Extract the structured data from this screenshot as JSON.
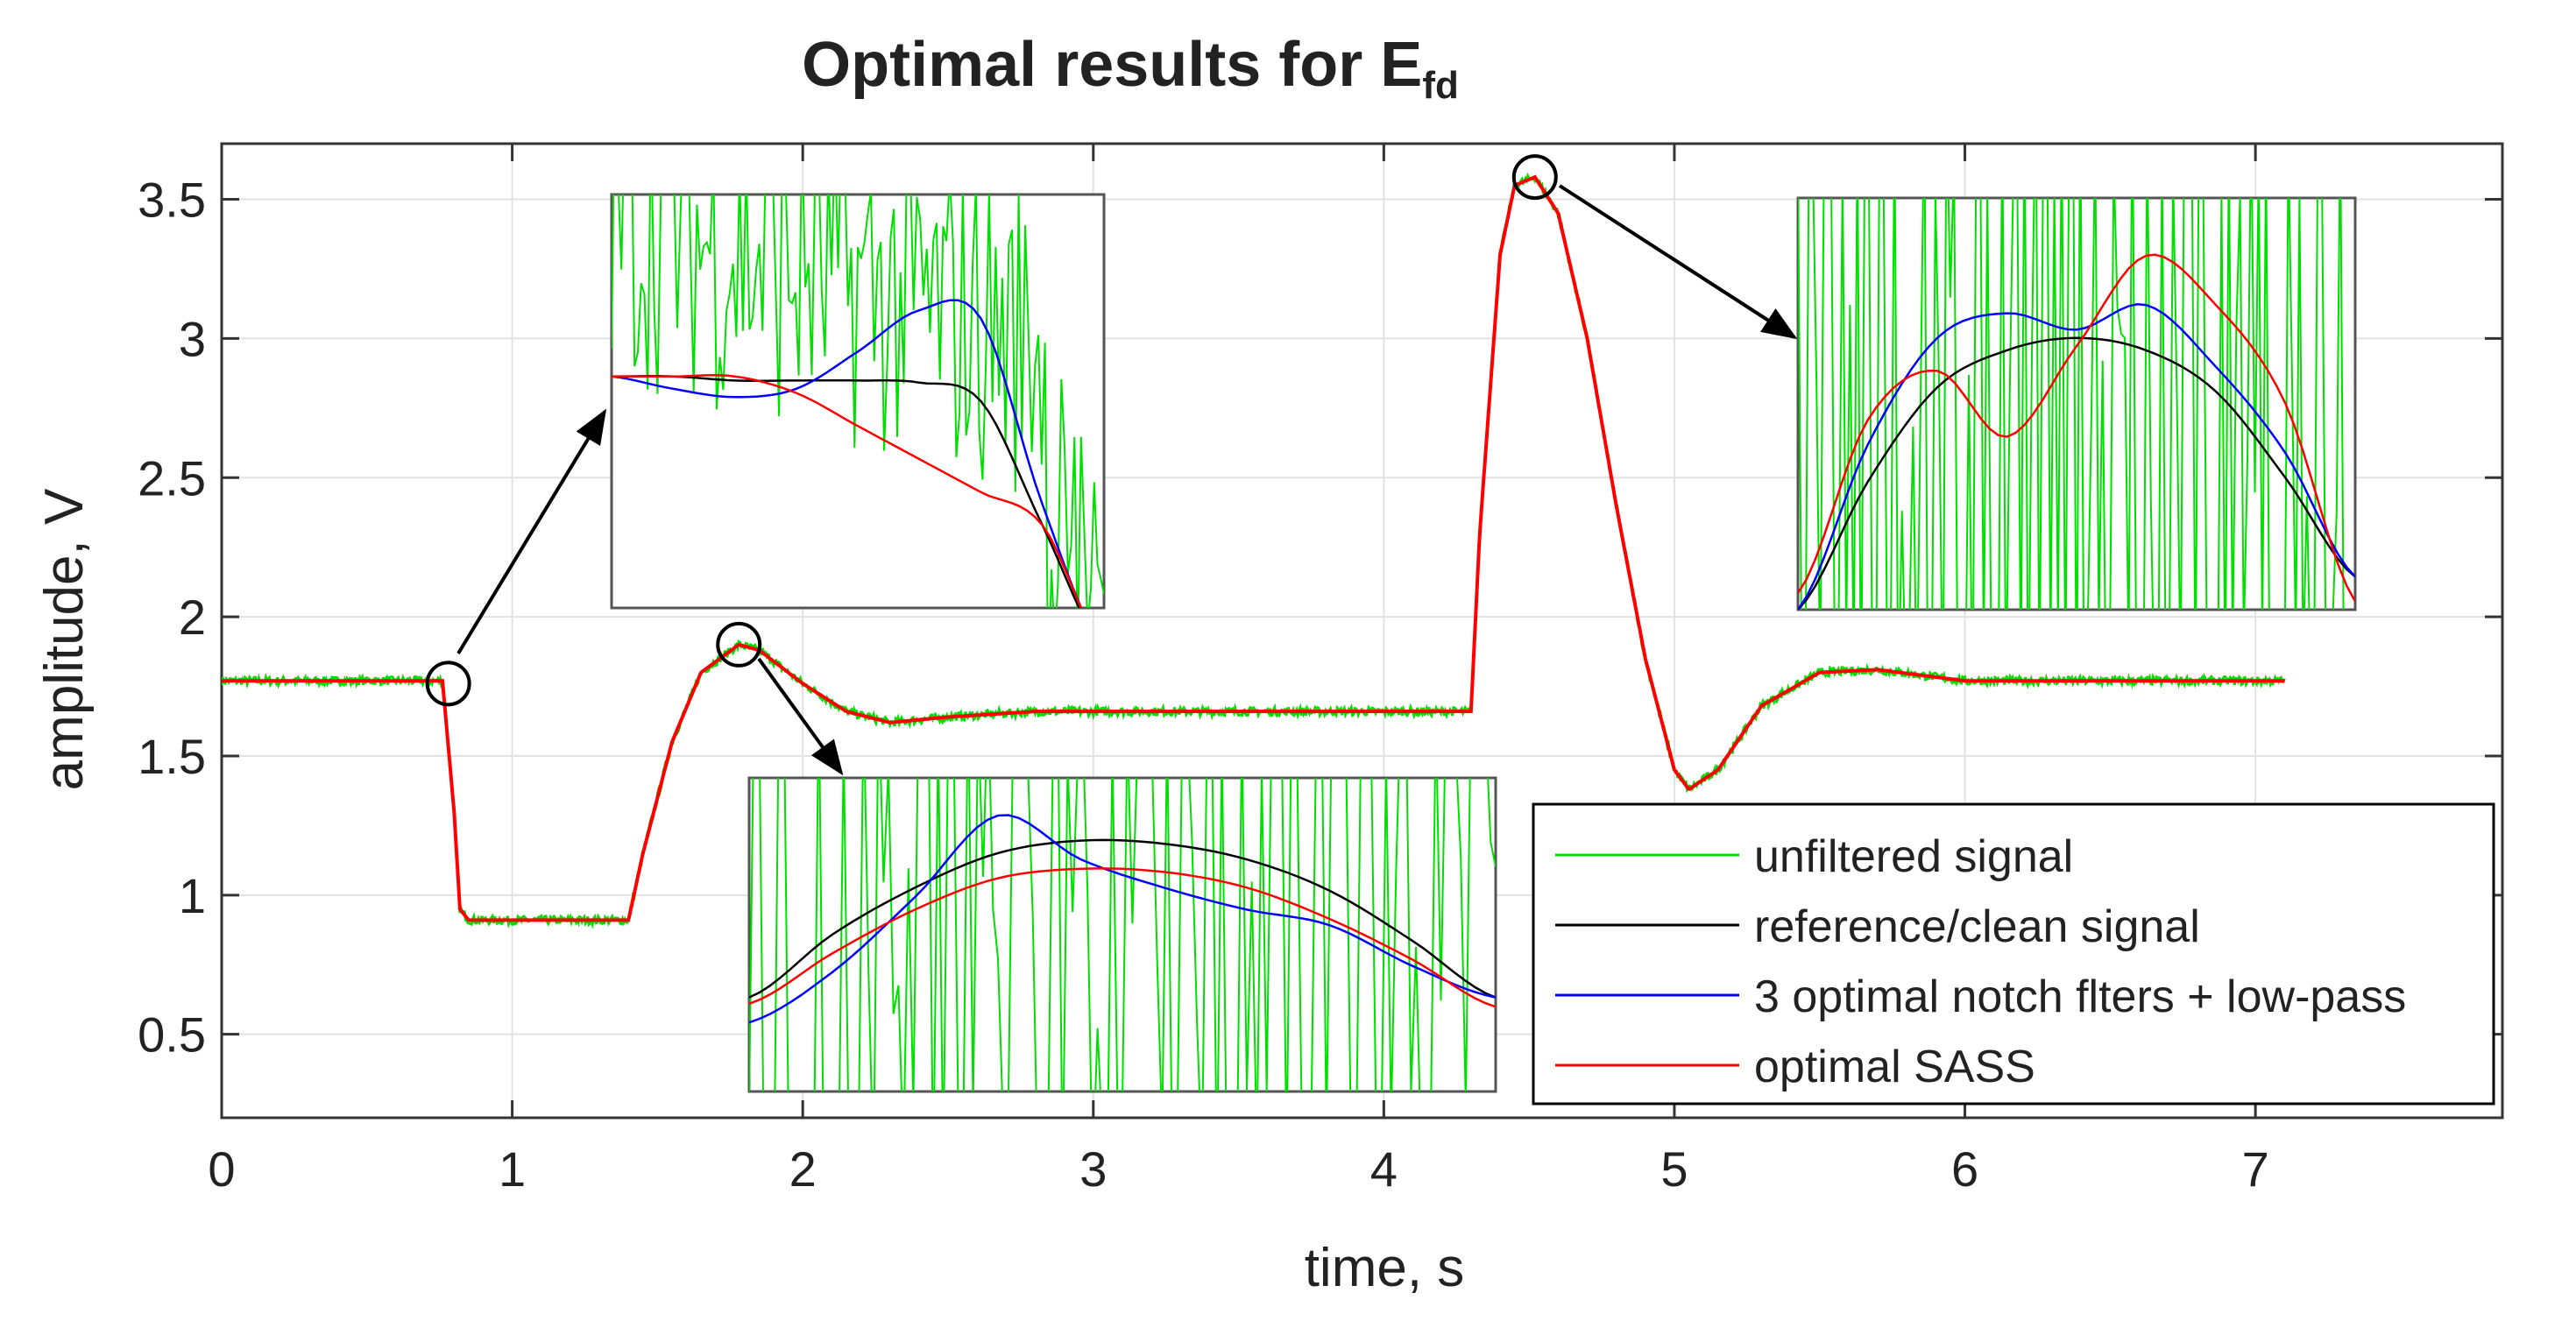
{
  "chart_data": {
    "type": "line",
    "title_main": "Optimal results for E",
    "title_sub": "fd",
    "xlabel": "time, s",
    "ylabel": "amplitude, V",
    "xlim": [
      0,
      7.85
    ],
    "ylim": [
      0.2,
      3.7
    ],
    "xticks": [
      0,
      1,
      2,
      3,
      4,
      5,
      6,
      7
    ],
    "xtick_labels": [
      "0",
      "1",
      "2",
      "3",
      "4",
      "5",
      "6",
      "7"
    ],
    "yticks": [
      0.5,
      1,
      1.5,
      2,
      2.5,
      3,
      3.5
    ],
    "ytick_labels": [
      "0.5",
      "1",
      "1.5",
      "2",
      "2.5",
      "3",
      "3.5"
    ],
    "grid": true,
    "legend_position": "bottom-right",
    "series": [
      {
        "name": "unfiltered signal",
        "color": "#00e000"
      },
      {
        "name": "reference/clean signal",
        "color": "#000000"
      },
      {
        "name": "3 optimal notch flters + low-pass",
        "color": "#0000ff"
      },
      {
        "name": "optimal SASS",
        "color": "#ff0000"
      }
    ],
    "signal_profile": {
      "t": [
        0,
        0.76,
        0.8,
        0.82,
        0.85,
        1.4,
        1.45,
        1.55,
        1.65,
        1.78,
        1.85,
        2.0,
        2.15,
        2.3,
        2.5,
        2.8,
        3.2,
        3.6,
        4.0,
        4.3,
        4.33,
        4.4,
        4.45,
        4.52,
        4.6,
        4.7,
        4.8,
        4.9,
        5.0,
        5.05,
        5.15,
        5.3,
        5.5,
        5.7,
        6.0,
        6.5,
        7.1
      ],
      "v": [
        1.77,
        1.77,
        1.3,
        0.95,
        0.91,
        0.91,
        1.15,
        1.55,
        1.8,
        1.9,
        1.88,
        1.76,
        1.66,
        1.62,
        1.64,
        1.66,
        1.66,
        1.66,
        1.66,
        1.66,
        2.3,
        3.3,
        3.55,
        3.58,
        3.45,
        3.0,
        2.4,
        1.85,
        1.45,
        1.38,
        1.45,
        1.68,
        1.8,
        1.81,
        1.77,
        1.77,
        1.77
      ]
    },
    "zoom_markers": [
      {
        "t": 0.78,
        "v": 1.76
      },
      {
        "t": 1.78,
        "v": 1.9
      },
      {
        "t": 4.52,
        "v": 3.58
      }
    ],
    "insets": [
      {
        "name": "inset-fall",
        "clean": [
          0.56,
          0.56,
          0.55,
          0.55,
          0.55,
          0.545,
          0.5,
          0.2,
          -0.1
        ],
        "notch": [
          0.56,
          0.53,
          0.51,
          0.53,
          0.62,
          0.72,
          0.7,
          0.25,
          -0.1
        ],
        "sass": [
          0.56,
          0.56,
          0.56,
          0.52,
          0.44,
          0.36,
          0.28,
          0.2,
          -0.1
        ]
      },
      {
        "name": "inset-peak",
        "clean": [
          0.3,
          0.5,
          0.65,
          0.76,
          0.8,
          0.79,
          0.74,
          0.64,
          0.48,
          0.3
        ],
        "notch": [
          0.22,
          0.38,
          0.62,
          0.88,
          0.74,
          0.65,
          0.58,
          0.53,
          0.4,
          0.3
        ],
        "sass": [
          0.28,
          0.44,
          0.58,
          0.68,
          0.71,
          0.7,
          0.65,
          0.55,
          0.42,
          0.27
        ]
      },
      {
        "name": "inset-max",
        "clean": [
          0.0,
          0.31,
          0.54,
          0.63,
          0.66,
          0.63,
          0.53,
          0.32,
          0.08
        ],
        "notch": [
          0.0,
          0.4,
          0.66,
          0.72,
          0.68,
          0.74,
          0.59,
          0.38,
          0.08
        ],
        "sass": [
          0.04,
          0.46,
          0.58,
          0.42,
          0.64,
          0.86,
          0.74,
          0.5,
          0.02
        ]
      }
    ]
  }
}
